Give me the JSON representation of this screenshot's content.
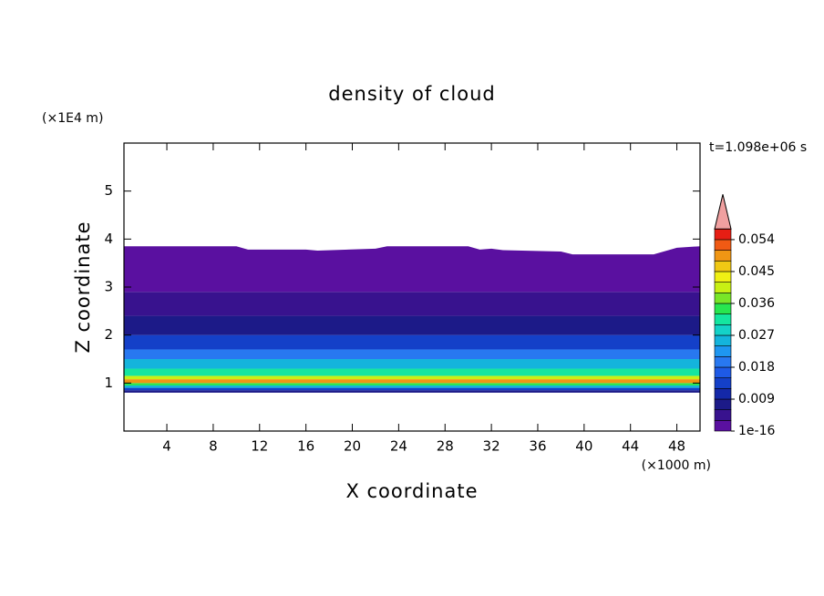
{
  "chart_data": {
    "type": "contour",
    "title": "density of cloud",
    "xlabel": "X coordinate",
    "ylabel": "Z coordinate",
    "x_unit": "(×1000 m)",
    "y_unit": "(×1E4 m)",
    "annotation": "t=1.098e+06 s",
    "xlim": [
      0.3,
      50
    ],
    "xticks": [
      4,
      8,
      12,
      16,
      20,
      24,
      28,
      32,
      36,
      40,
      44,
      48
    ],
    "ylim": [
      0,
      6
    ],
    "yticks": [
      1,
      2,
      3,
      4,
      5
    ],
    "layers": {
      "z": [
        0.8,
        0.85,
        0.9,
        0.95,
        1.0,
        1.08,
        1.15,
        1.3,
        1.5,
        1.7,
        2.0,
        2.4,
        2.9,
        3.9
      ],
      "values": [
        0.008,
        0.014,
        0.026,
        0.035,
        0.048,
        0.041,
        0.031,
        0.026,
        0.02,
        0.014,
        0.008,
        0.005,
        0.002
      ]
    },
    "cloud_top": {
      "x": [
        0.3,
        10,
        11,
        16,
        17,
        22,
        23,
        30,
        31,
        32,
        33,
        38,
        39,
        46,
        48,
        50
      ],
      "z": [
        3.85,
        3.85,
        3.78,
        3.78,
        3.76,
        3.8,
        3.85,
        3.85,
        3.78,
        3.8,
        3.77,
        3.74,
        3.68,
        3.68,
        3.82,
        3.85
      ]
    },
    "colorbar": {
      "levels": [
        1e-16,
        0.003,
        0.006,
        0.009,
        0.012,
        0.015,
        0.018,
        0.021,
        0.024,
        0.027,
        0.03,
        0.033,
        0.036,
        0.039,
        0.042,
        0.045,
        0.048,
        0.051,
        0.054,
        0.057
      ],
      "colors": [
        "#5a10a0",
        "#38128e",
        "#1c1a88",
        "#1428a8",
        "#1440c8",
        "#1e5ae6",
        "#2878f0",
        "#1e96f0",
        "#14b4dc",
        "#14d2c8",
        "#14e6a0",
        "#28e650",
        "#78e628",
        "#c8f014",
        "#f0f014",
        "#f0c814",
        "#f09614",
        "#f05a14",
        "#e61e14"
      ],
      "extend_color": "#f0a0a0",
      "ticks": [
        1e-16,
        0.009,
        0.018,
        0.027,
        0.036,
        0.045,
        0.054
      ]
    }
  }
}
